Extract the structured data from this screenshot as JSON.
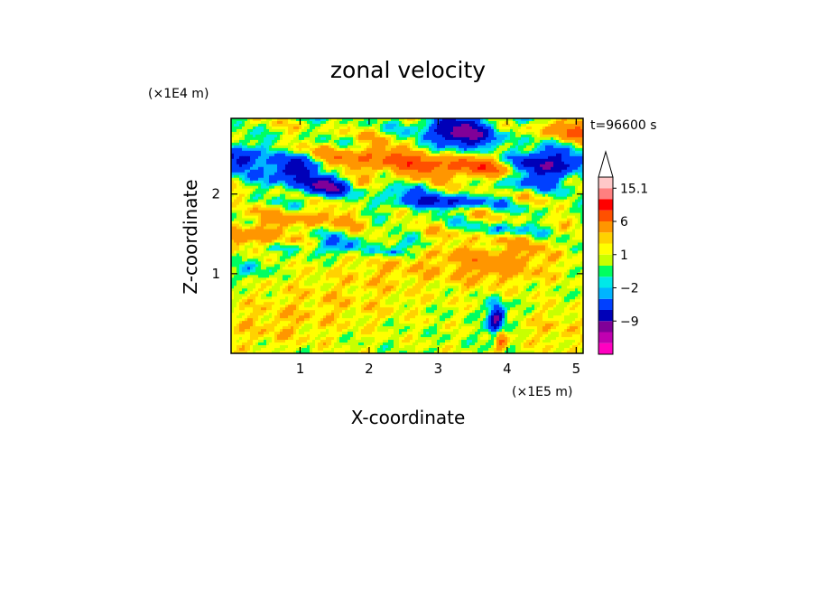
{
  "chart_data": {
    "type": "heatmap",
    "title": "zonal velocity",
    "xlabel": "X-coordinate",
    "ylabel": "Z-coordinate",
    "x_unit": "(×1E5 m)",
    "y_unit": "(×1E4 m)",
    "time_label": "t=96600 s",
    "xlim": [
      0,
      5.1
    ],
    "ylim": [
      0,
      2.95
    ],
    "x_ticks": [
      "1",
      "2",
      "3",
      "4",
      "5"
    ],
    "y_ticks": [
      "1",
      "2"
    ],
    "colorbar": {
      "levels": [
        -15,
        -12,
        -9,
        -6,
        -3,
        -2,
        -1,
        0,
        1,
        2,
        3,
        6,
        9,
        12,
        15.1
      ],
      "colors": [
        "#ff00c0",
        "#c000b0",
        "#800098",
        "#0000b8",
        "#0040ff",
        "#00b4ff",
        "#00e8e8",
        "#00ff60",
        "#c8ff00",
        "#ffff00",
        "#ffd200",
        "#ff9600",
        "#ff5000",
        "#ff0000",
        "#ff8080",
        "#ffc8c8"
      ],
      "labels": [
        "15.1",
        "6",
        "1",
        "−2",
        "−9"
      ],
      "label_values": [
        15.1,
        6,
        1,
        -2,
        -9
      ],
      "extend": "max"
    },
    "features": [
      {
        "x": 3.3,
        "z": 2.75,
        "u": -11,
        "sx": 0.35,
        "sz": 0.18
      },
      {
        "x": 4.6,
        "z": 2.4,
        "u": -10,
        "sx": 0.35,
        "sz": 0.15
      },
      {
        "x": 0.85,
        "z": 2.3,
        "u": -9,
        "sx": 0.25,
        "sz": 0.12
      },
      {
        "x": 1.35,
        "z": 2.1,
        "u": -10,
        "sx": 0.22,
        "sz": 0.1
      },
      {
        "x": 0.15,
        "z": 2.45,
        "u": -8,
        "sx": 0.2,
        "sz": 0.12
      },
      {
        "x": 3.0,
        "z": 1.9,
        "u": -7,
        "sx": 0.5,
        "sz": 0.06
      },
      {
        "x": 3.85,
        "z": 0.4,
        "u": -12,
        "sx": 0.08,
        "sz": 0.15
      },
      {
        "x": 3.9,
        "z": 0.2,
        "u": 8,
        "sx": 0.06,
        "sz": 0.12
      },
      {
        "x": 2.8,
        "z": 2.4,
        "u": 6,
        "sx": 0.5,
        "sz": 0.15
      },
      {
        "x": 3.6,
        "z": 2.35,
        "u": 5,
        "sx": 0.4,
        "sz": 0.12
      },
      {
        "x": 1.8,
        "z": 2.45,
        "u": 4,
        "sx": 0.4,
        "sz": 0.12
      },
      {
        "x": 4.9,
        "z": 2.75,
        "u": 5,
        "sx": 0.3,
        "sz": 0.15
      },
      {
        "x": 3.8,
        "z": 1.15,
        "u": 4,
        "sx": 0.6,
        "sz": 0.2
      },
      {
        "x": 0.3,
        "z": 1.5,
        "u": 4,
        "sx": 0.3,
        "sz": 0.12
      },
      {
        "x": 1.2,
        "z": 1.7,
        "u": 3,
        "sx": 0.5,
        "sz": 0.1
      },
      {
        "x": 1.5,
        "z": 0.65,
        "u": 1.5,
        "sx": 0.9,
        "sz": 0.25
      },
      {
        "x": 0.5,
        "z": 0.3,
        "u": 1.5,
        "sx": 0.6,
        "sz": 0.2
      },
      {
        "x": 4.7,
        "z": 0.3,
        "u": 1.5,
        "sx": 0.4,
        "sz": 0.2
      },
      {
        "x": 2.3,
        "z": 1.05,
        "u": 1.5,
        "sx": 0.5,
        "sz": 0.15
      },
      {
        "x": 1.5,
        "z": 1.35,
        "u": -4,
        "sx": 0.3,
        "sz": 0.07
      },
      {
        "x": 2.3,
        "z": 1.3,
        "u": -4,
        "sx": 0.2,
        "sz": 0.06
      },
      {
        "x": 4.0,
        "z": 1.55,
        "u": -3,
        "sx": 0.3,
        "sz": 0.06
      },
      {
        "x": 0.3,
        "z": 1.05,
        "u": -2.5,
        "sx": 0.15,
        "sz": 0.1
      },
      {
        "x": 2.6,
        "z": 2.05,
        "u": -3,
        "sx": 0.35,
        "sz": 0.08
      },
      {
        "x": 4.3,
        "z": 2.15,
        "u": -3,
        "sx": 0.3,
        "sz": 0.07
      }
    ]
  }
}
